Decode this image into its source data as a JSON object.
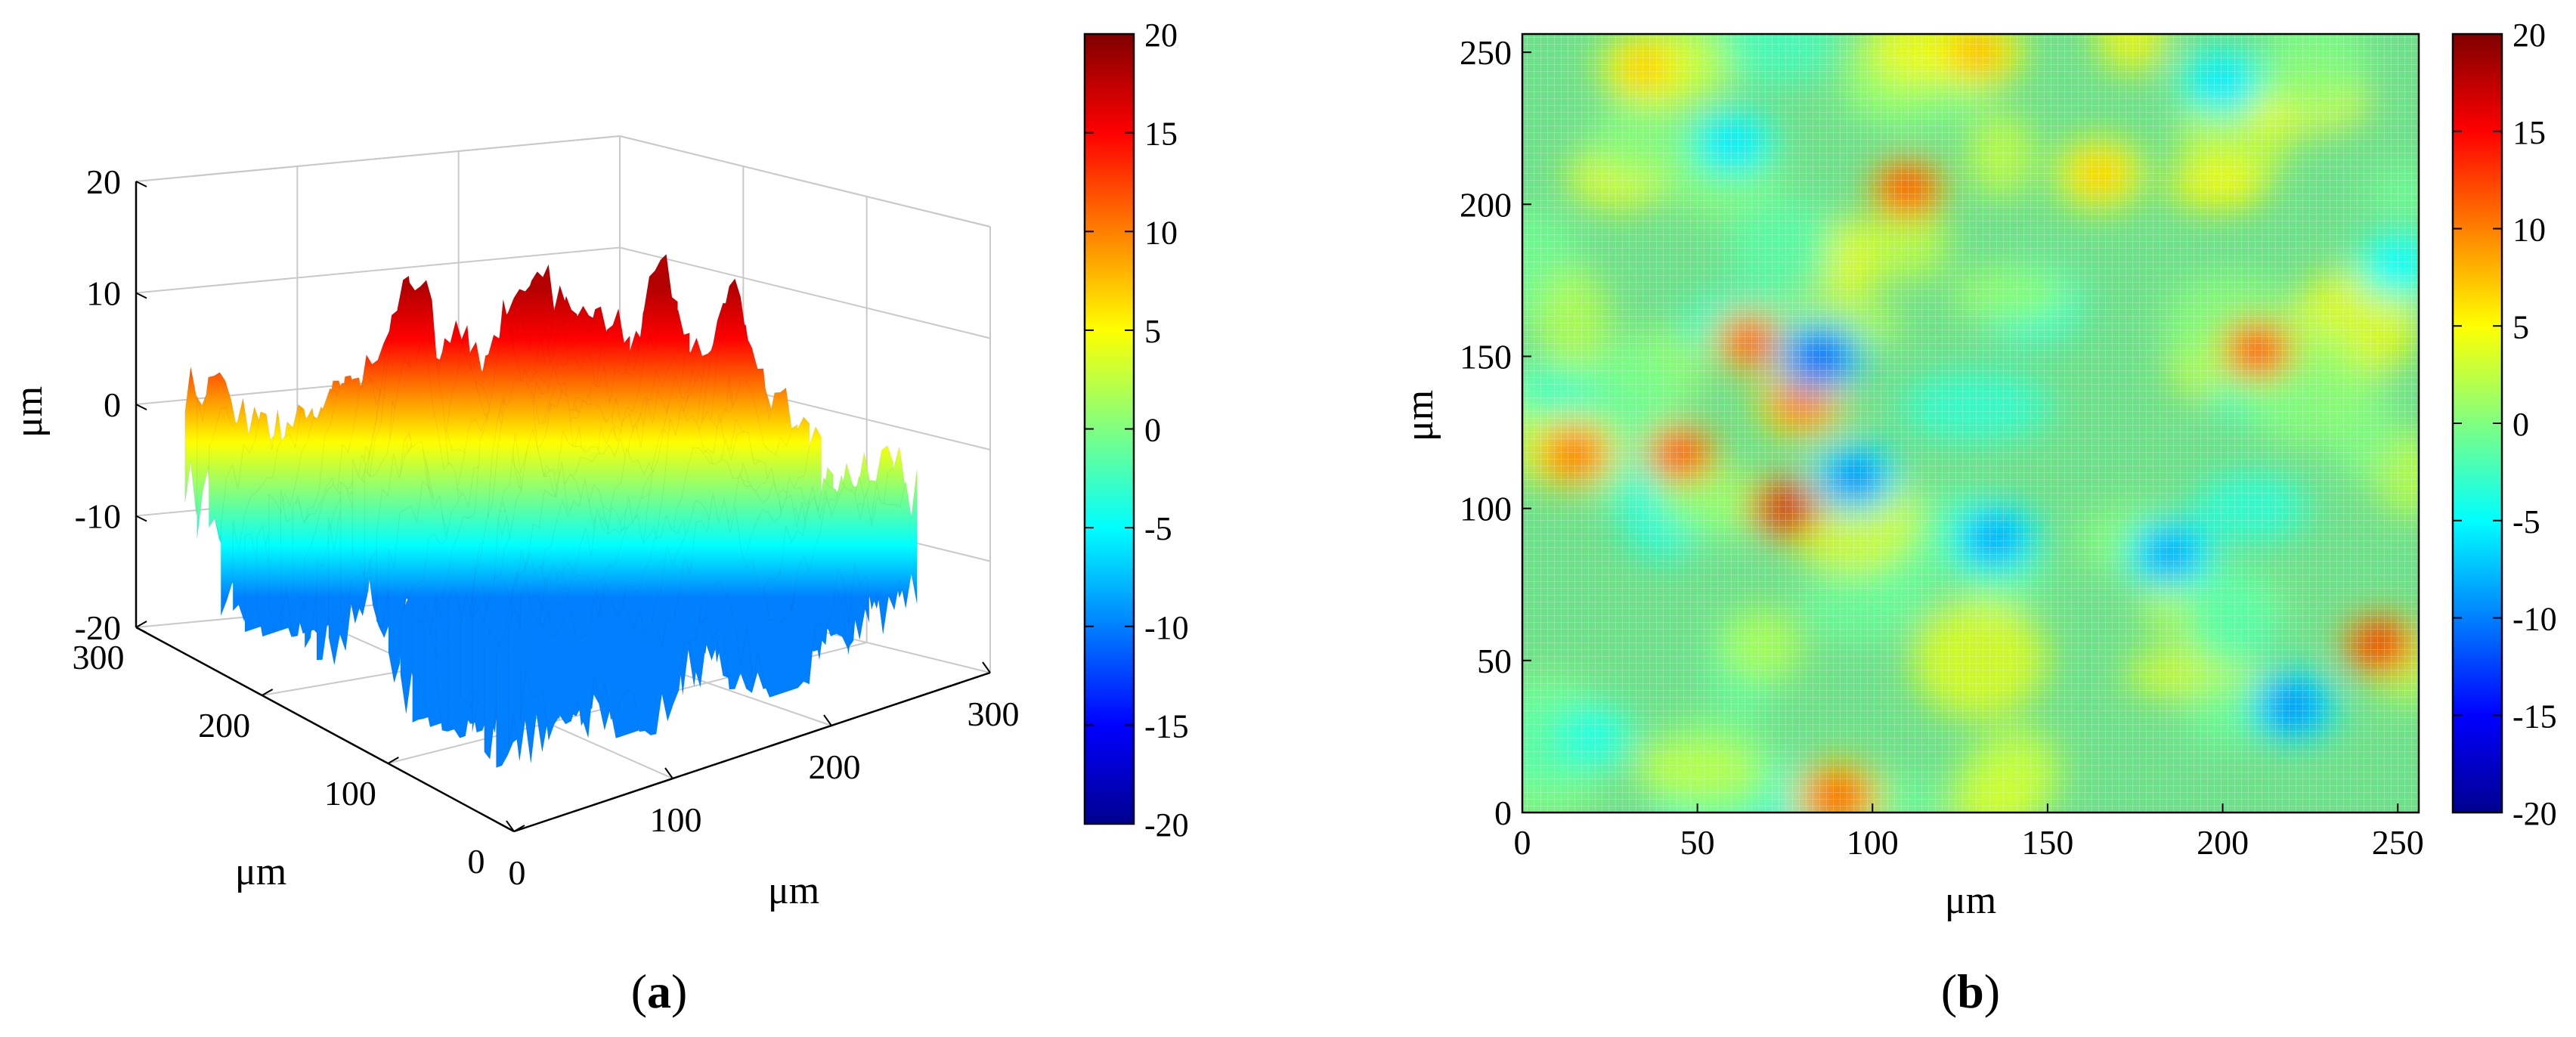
{
  "colormap": [
    "#00008f",
    "#0000ff",
    "#0080ff",
    "#00ffff",
    "#80ff80",
    "#ffff00",
    "#ff8000",
    "#ff0000",
    "#800000"
  ],
  "panel_a": {
    "caption": "a",
    "caption_open": "(",
    "caption_close": ")"
  },
  "panel_b": {
    "caption": "b",
    "caption_open": "(",
    "caption_close": ")"
  },
  "chart_data": [
    {
      "type": "surface3d",
      "title": "",
      "xlabel": "μm",
      "ylabel": "μm",
      "zlabel": "μm",
      "xlim": [
        0,
        300
      ],
      "ylim": [
        0,
        300
      ],
      "zlim": [
        -20,
        20
      ],
      "xticks": [
        "0",
        "100",
        "200",
        "300"
      ],
      "yticks": [
        "0",
        "100",
        "200",
        "300"
      ],
      "zticks": [
        "-20",
        "-10",
        "0",
        "10",
        "20"
      ],
      "grid": true,
      "colorbar": {
        "range": [
          -20,
          20
        ],
        "ticks": [
          "20",
          "15",
          "10",
          "5",
          "0",
          "-5",
          "-10",
          "-15",
          "-20"
        ]
      },
      "peaks": [
        {
          "x": 45,
          "y": 145,
          "z": 16
        },
        {
          "x": 60,
          "y": 150,
          "z": 17
        },
        {
          "x": 75,
          "y": 100,
          "z": 18
        },
        {
          "x": 130,
          "y": 210,
          "z": 14
        },
        {
          "x": 225,
          "y": 110,
          "z": 16
        },
        {
          "x": 255,
          "y": 205,
          "z": 13
        },
        {
          "x": 150,
          "y": 60,
          "z": 9
        }
      ]
    },
    {
      "type": "heatmap",
      "title": "",
      "xlabel": "μm",
      "ylabel": "μm",
      "xlim": [
        0,
        256
      ],
      "ylim": [
        0,
        256
      ],
      "xticks": [
        "0",
        "50",
        "100",
        "150",
        "200",
        "250"
      ],
      "yticks": [
        "0",
        "50",
        "100",
        "150",
        "200",
        "250"
      ],
      "colorbar": {
        "range": [
          -20,
          20
        ],
        "ticks": [
          "20",
          "15",
          "10",
          "5",
          "0",
          "-5",
          "-10",
          "-15",
          "-20"
        ]
      },
      "features": [
        {
          "x": 75,
          "y": 100,
          "z": 18
        },
        {
          "x": 110,
          "y": 205,
          "z": 14
        },
        {
          "x": 65,
          "y": 155,
          "z": 13
        },
        {
          "x": 80,
          "y": 135,
          "z": 11
        },
        {
          "x": 210,
          "y": 152,
          "z": 14
        },
        {
          "x": 245,
          "y": 55,
          "z": 16
        },
        {
          "x": 15,
          "y": 118,
          "z": 11
        },
        {
          "x": 90,
          "y": 5,
          "z": 12
        },
        {
          "x": 45,
          "y": 118,
          "z": 14
        },
        {
          "x": 35,
          "y": 245,
          "z": 7
        },
        {
          "x": 130,
          "y": 250,
          "z": 8
        },
        {
          "x": 165,
          "y": 210,
          "z": 7
        },
        {
          "x": 85,
          "y": 150,
          "z": -12
        },
        {
          "x": 95,
          "y": 110,
          "z": -10
        },
        {
          "x": 135,
          "y": 90,
          "z": -9
        },
        {
          "x": 185,
          "y": 85,
          "z": -9
        },
        {
          "x": 220,
          "y": 35,
          "z": -10
        },
        {
          "x": 60,
          "y": 220,
          "z": -6
        },
        {
          "x": 200,
          "y": 240,
          "z": -6
        },
        {
          "x": 250,
          "y": 180,
          "z": -5
        },
        {
          "x": 20,
          "y": 25,
          "z": -4
        }
      ]
    }
  ]
}
